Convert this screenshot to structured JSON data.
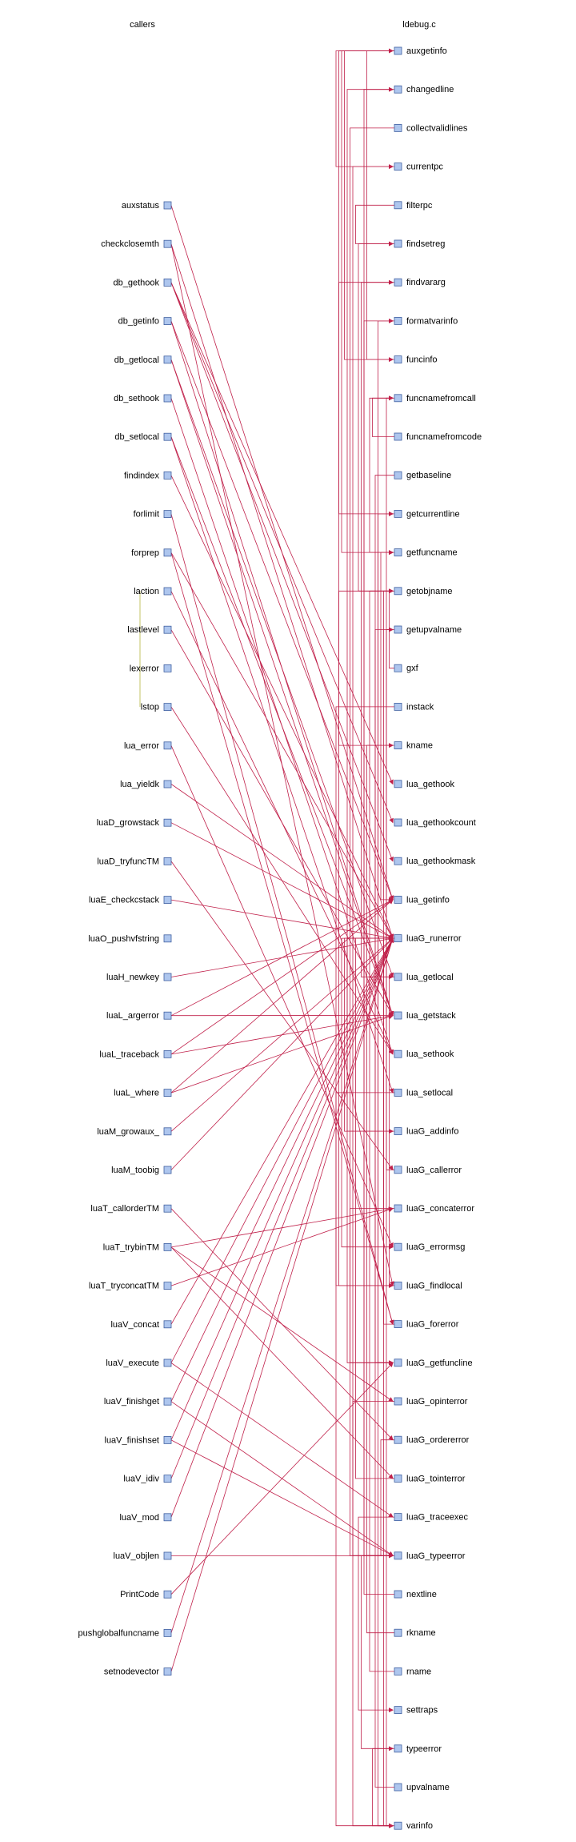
{
  "headers": {
    "left": "callers",
    "right": "ldebug.c"
  },
  "colors": {
    "edge": "#c0204a",
    "node_fill": "#aec6ee",
    "node_stroke": "#4060a0",
    "link_alt": "#b7b740"
  },
  "callers": [
    "auxstatus",
    "checkclosemth",
    "db_gethook",
    "db_getinfo",
    "db_getlocal",
    "db_sethook",
    "db_setlocal",
    "findindex",
    "forlimit",
    "forprep",
    "laction",
    "lastlevel",
    "lexerror",
    "lstop",
    "lua_error",
    "lua_yieldk",
    "luaD_growstack",
    "luaD_tryfuncTM",
    "luaE_checkcstack",
    "luaO_pushvfstring",
    "luaH_newkey",
    "luaL_argerror",
    "luaL_traceback",
    "luaL_where",
    "luaM_growaux_",
    "luaM_toobig",
    "luaT_callorderTM",
    "luaT_trybinTM",
    "luaT_tryconcatTM",
    "luaV_concat",
    "luaV_execute",
    "luaV_finishget",
    "luaV_finishset",
    "luaV_idiv",
    "luaV_mod",
    "luaV_objlen",
    "PrintCode",
    "pushglobalfuncname",
    "setnodevector"
  ],
  "functions": [
    "auxgetinfo",
    "changedline",
    "collectvalidlines",
    "currentpc",
    "filterpc",
    "findsetreg",
    "findvararg",
    "formatvarinfo",
    "funcinfo",
    "funcnamefromcall",
    "funcnamefromcode",
    "getbaseline",
    "getcurrentline",
    "getfuncname",
    "getobjname",
    "getupvalname",
    "gxf",
    "instack",
    "kname",
    "lua_gethook",
    "lua_gethookcount",
    "lua_gethookmask",
    "lua_getinfo",
    "luaG_runerror",
    "lua_getlocal",
    "lua_getstack",
    "lua_sethook",
    "lua_setlocal",
    "luaG_addinfo",
    "luaG_callerror",
    "luaG_concaterror",
    "luaG_errormsg",
    "luaG_findlocal",
    "luaG_forerror",
    "luaG_getfuncline",
    "luaG_opinterror",
    "luaG_ordererror",
    "luaG_tointerror",
    "luaG_traceexec",
    "luaG_typeerror",
    "nextline",
    "rkname",
    "rname",
    "settraps",
    "typeerror",
    "upvalname",
    "varinfo"
  ],
  "caller_edges": [
    [
      "auxstatus",
      "lua_getinfo"
    ],
    [
      "checkclosemth",
      "luaG_runerror"
    ],
    [
      "checkclosemth",
      "luaG_findlocal"
    ],
    [
      "db_gethook",
      "lua_gethook"
    ],
    [
      "db_gethook",
      "lua_gethookcount"
    ],
    [
      "db_gethook",
      "lua_gethookmask"
    ],
    [
      "db_getinfo",
      "lua_getinfo"
    ],
    [
      "db_getinfo",
      "lua_getstack"
    ],
    [
      "db_getlocal",
      "lua_getlocal"
    ],
    [
      "db_getlocal",
      "lua_getstack"
    ],
    [
      "db_sethook",
      "lua_sethook"
    ],
    [
      "db_setlocal",
      "lua_setlocal"
    ],
    [
      "db_setlocal",
      "lua_getstack"
    ],
    [
      "findindex",
      "luaG_runerror"
    ],
    [
      "forlimit",
      "luaG_forerror"
    ],
    [
      "forprep",
      "luaG_forerror"
    ],
    [
      "forprep",
      "luaG_runerror"
    ],
    [
      "laction",
      "lua_sethook"
    ],
    [
      "lastlevel",
      "lua_getstack"
    ],
    [
      "lexerror",
      "luaO_pushvfstring"
    ],
    [
      "lstop",
      "lua_sethook"
    ],
    [
      "lua_error",
      "luaG_errormsg"
    ],
    [
      "lua_yieldk",
      "luaG_runerror"
    ],
    [
      "luaD_growstack",
      "luaG_runerror"
    ],
    [
      "luaD_tryfuncTM",
      "luaG_callerror"
    ],
    [
      "luaE_checkcstack",
      "luaG_runerror"
    ],
    [
      "luaH_newkey",
      "luaG_runerror"
    ],
    [
      "luaL_argerror",
      "lua_getinfo"
    ],
    [
      "luaL_argerror",
      "lua_getstack"
    ],
    [
      "luaL_traceback",
      "lua_getinfo"
    ],
    [
      "luaL_traceback",
      "lua_getstack"
    ],
    [
      "luaL_where",
      "lua_getinfo"
    ],
    [
      "luaL_where",
      "lua_getstack"
    ],
    [
      "luaM_growaux_",
      "luaG_runerror"
    ],
    [
      "luaM_toobig",
      "luaG_runerror"
    ],
    [
      "luaT_callorderTM",
      "luaG_ordererror"
    ],
    [
      "luaT_trybinTM",
      "luaG_opinterror"
    ],
    [
      "luaT_trybinTM",
      "luaG_tointerror"
    ],
    [
      "luaT_trybinTM",
      "luaG_concaterror"
    ],
    [
      "luaT_tryconcatTM",
      "luaG_concaterror"
    ],
    [
      "luaV_concat",
      "luaG_runerror"
    ],
    [
      "luaV_execute",
      "luaG_traceexec"
    ],
    [
      "luaV_execute",
      "luaG_runerror"
    ],
    [
      "luaV_finishget",
      "luaG_typeerror"
    ],
    [
      "luaV_finishget",
      "luaG_runerror"
    ],
    [
      "luaV_finishset",
      "luaG_typeerror"
    ],
    [
      "luaV_finishset",
      "luaG_runerror"
    ],
    [
      "luaV_idiv",
      "luaG_runerror"
    ],
    [
      "luaV_mod",
      "luaG_runerror"
    ],
    [
      "luaV_objlen",
      "luaG_typeerror"
    ],
    [
      "PrintCode",
      "luaG_getfuncline"
    ],
    [
      "pushglobalfuncname",
      "luaG_runerror"
    ],
    [
      "setnodevector",
      "luaG_runerror"
    ]
  ],
  "internal_edges": [
    [
      "auxgetinfo",
      "currentpc"
    ],
    [
      "auxgetinfo",
      "getcurrentline"
    ],
    [
      "auxgetinfo",
      "getfuncname"
    ],
    [
      "auxgetinfo",
      "funcinfo"
    ],
    [
      "changedline",
      "luaG_getfuncline"
    ],
    [
      "collectvalidlines",
      "luaG_getfuncline"
    ],
    [
      "currentpc",
      "varinfo"
    ],
    [
      "filterpc",
      "findsetreg"
    ],
    [
      "findsetreg",
      "getobjname"
    ],
    [
      "findvararg",
      "lua_getlocal"
    ],
    [
      "formatvarinfo",
      "luaG_typeerror"
    ],
    [
      "funcinfo",
      "auxgetinfo"
    ],
    [
      "funcnamefromcall",
      "getfuncname"
    ],
    [
      "funcnamefromcode",
      "funcnamefromcall"
    ],
    [
      "getbaseline",
      "luaG_getfuncline"
    ],
    [
      "getcurrentline",
      "luaG_getfuncline"
    ],
    [
      "getfuncname",
      "lua_getinfo"
    ],
    [
      "getobjname",
      "varinfo"
    ],
    [
      "getupvalname",
      "varinfo"
    ],
    [
      "gxf",
      "getobjname"
    ],
    [
      "instack",
      "varinfo"
    ],
    [
      "kname",
      "getobjname"
    ],
    [
      "luaG_runerror",
      "luaG_errormsg"
    ],
    [
      "luaG_runerror",
      "luaG_addinfo"
    ],
    [
      "luaG_addinfo",
      "luaG_runerror"
    ],
    [
      "luaG_concaterror",
      "luaG_typeerror"
    ],
    [
      "luaG_opinterror",
      "luaG_typeerror"
    ],
    [
      "luaG_tointerror",
      "luaG_runerror"
    ],
    [
      "luaG_traceexec",
      "settraps"
    ],
    [
      "luaG_typeerror",
      "typeerror"
    ],
    [
      "nextline",
      "changedline"
    ],
    [
      "rkname",
      "kname"
    ],
    [
      "rname",
      "getobjname"
    ],
    [
      "typeerror",
      "varinfo"
    ],
    [
      "upvalname",
      "getupvalname"
    ],
    [
      "varinfo",
      "formatvarinfo"
    ],
    [
      "luaG_ordererror",
      "luaG_typeerror"
    ],
    [
      "luaG_forerror",
      "luaG_runerror"
    ],
    [
      "luaG_callerror",
      "funcnamefromcall"
    ],
    [
      "lua_getlocal",
      "luaG_findlocal"
    ],
    [
      "lua_setlocal",
      "luaG_findlocal"
    ],
    [
      "luaG_findlocal",
      "findvararg"
    ]
  ],
  "alt_edges": [
    [
      "laction",
      "lstop"
    ]
  ]
}
